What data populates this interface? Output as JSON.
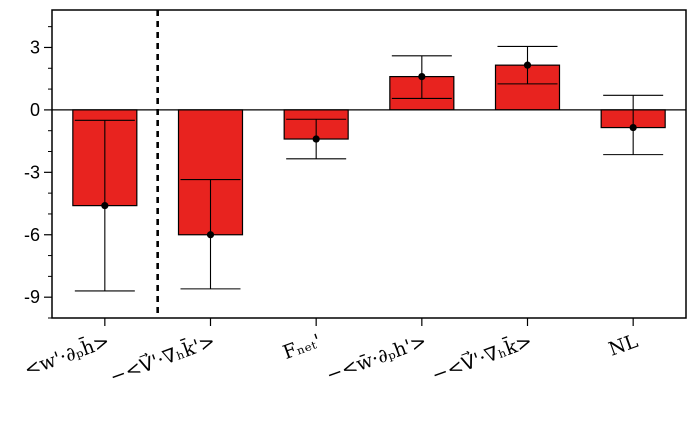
{
  "chart_data": {
    "type": "bar",
    "categories": [
      "<w'·∂ₚh̄>",
      "−<V⃗'·∇ₕk̄'>",
      "Fₙₑₜ'",
      "−<w̄·∂ₚh'>",
      "−<V⃗'·∇ₕk̄>",
      "NL"
    ],
    "values": [
      -4.6,
      -6.0,
      -1.4,
      1.6,
      2.15,
      -0.85
    ],
    "error_low": [
      -8.7,
      -8.6,
      -2.35,
      0.55,
      1.25,
      -2.15
    ],
    "error_high": [
      -0.5,
      -3.35,
      -0.45,
      2.6,
      3.05,
      0.7
    ],
    "ylim": [
      -10,
      4.8
    ],
    "yticks": [
      3,
      0,
      -3,
      -6,
      -9
    ],
    "ytick_labels": [
      "3",
      "0",
      "-3",
      "-6",
      "-9"
    ],
    "title": "",
    "xlabel": "",
    "ylabel": "",
    "bar_color": "#e8231f",
    "divider_after_index": 0,
    "grid": false
  }
}
